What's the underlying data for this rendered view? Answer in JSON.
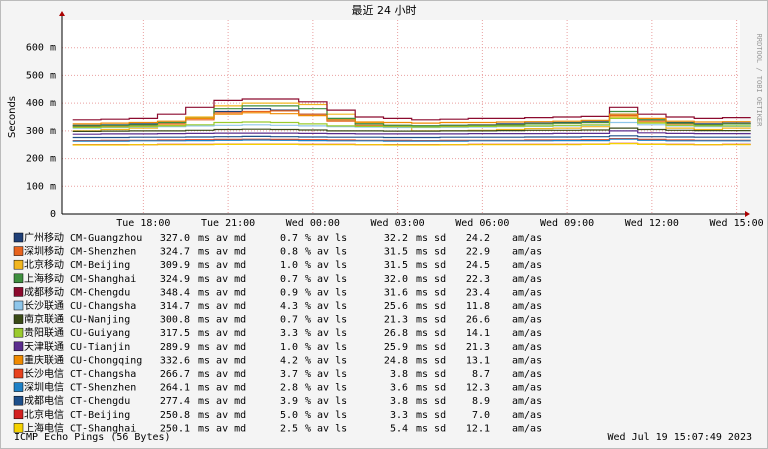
{
  "chart_data": {
    "type": "line",
    "title": "最近 24 小时",
    "y_label": "Seconds",
    "side_label": "RRDTOOL / TOBI OETIKER",
    "footer_left": "ICMP Echo Pings (56 Bytes)",
    "footer_right": "Wed Jul 19 15:07:49 2023",
    "legend_units": [
      "ms av md",
      "% av ls",
      "ms sd",
      "am/as"
    ],
    "grid": true,
    "x": [
      16,
      17,
      18,
      19,
      20,
      21,
      22,
      23,
      24,
      25,
      26,
      27,
      28,
      29,
      30,
      31,
      32,
      33,
      34,
      35,
      36,
      37,
      38,
      39
    ],
    "xlim": [
      15.12,
      39.12
    ],
    "xticks": [
      {
        "value": 18,
        "label": "Tue 18:00"
      },
      {
        "value": 21,
        "label": "Tue 21:00"
      },
      {
        "value": 24,
        "label": "Wed 00:00"
      },
      {
        "value": 27,
        "label": "Wed 03:00"
      },
      {
        "value": 30,
        "label": "Wed 06:00"
      },
      {
        "value": 33,
        "label": "Wed 09:00"
      },
      {
        "value": 36,
        "label": "Wed 12:00"
      },
      {
        "value": 39,
        "label": "Wed 15:00"
      }
    ],
    "ylim": [
      0,
      700
    ],
    "yticks": [
      0,
      {
        "value": 100,
        "label": "100 m"
      },
      {
        "value": 200,
        "label": "200 m"
      },
      {
        "value": 300,
        "label": "300 m"
      },
      {
        "value": 400,
        "label": "400 m"
      },
      {
        "value": 500,
        "label": "500 m"
      },
      {
        "value": 600,
        "label": "600 m"
      }
    ],
    "series": [
      {
        "name": "广州移动 CM-Guangzhou",
        "color": "#1f3f77",
        "stats": [
          "327.0",
          "0.7",
          "32.2",
          "24.2"
        ],
        "values": [
          320,
          322,
          325,
          330,
          345,
          370,
          380,
          375,
          360,
          340,
          325,
          320,
          318,
          320,
          322,
          325,
          328,
          330,
          335,
          360,
          340,
          330,
          325,
          328
        ]
      },
      {
        "name": "深圳移动 CM-Shenzhen",
        "color": "#e8641e",
        "stats": [
          "324.7",
          "0.8",
          "31.5",
          "22.9"
        ],
        "values": [
          315,
          318,
          320,
          325,
          340,
          365,
          370,
          372,
          360,
          335,
          320,
          316,
          315,
          318,
          320,
          322,
          325,
          328,
          330,
          355,
          335,
          325,
          322,
          325
        ]
      },
      {
        "name": "北京移动 CM-Beijing",
        "color": "#f2b61f",
        "stats": [
          "309.9",
          "1.0",
          "31.5",
          "24.5"
        ],
        "values": [
          300,
          305,
          310,
          320,
          350,
          390,
          400,
          400,
          395,
          360,
          330,
          320,
          300,
          300,
          302,
          305,
          308,
          310,
          315,
          350,
          330,
          310,
          305,
          310
        ]
      },
      {
        "name": "上海移动 CM-Shanghai",
        "color": "#3f8f3f",
        "stats": [
          "324.9",
          "0.7",
          "32.0",
          "22.3"
        ],
        "values": [
          318,
          320,
          322,
          330,
          345,
          380,
          390,
          390,
          380,
          345,
          325,
          320,
          318,
          320,
          320,
          322,
          325,
          328,
          330,
          370,
          340,
          328,
          322,
          325
        ]
      },
      {
        "name": "成都移动 CM-Chengdu",
        "color": "#8c0a2e",
        "stats": [
          "348.4",
          "0.9",
          "31.6",
          "23.4"
        ],
        "values": [
          340,
          342,
          345,
          360,
          385,
          410,
          415,
          415,
          405,
          375,
          350,
          345,
          340,
          342,
          345,
          345,
          348,
          350,
          352,
          385,
          360,
          350,
          345,
          348
        ]
      },
      {
        "name": "长沙联通 CU-Changsha",
        "color": "#8ec6ea",
        "stats": [
          "314.7",
          "4.3",
          "25.6",
          "11.8"
        ],
        "values": [
          310,
          312,
          314,
          315,
          318,
          320,
          322,
          320,
          318,
          315,
          314,
          312,
          312,
          313,
          314,
          315,
          316,
          318,
          320,
          330,
          322,
          318,
          315,
          316
        ]
      },
      {
        "name": "南京联通 CU-Nanjing",
        "color": "#3a4a16",
        "stats": [
          "300.8",
          "0.7",
          "21.3",
          "26.6"
        ],
        "values": [
          298,
          299,
          300,
          300,
          302,
          305,
          306,
          305,
          303,
          300,
          300,
          299,
          299,
          300,
          300,
          301,
          302,
          302,
          303,
          310,
          305,
          302,
          301,
          301
        ]
      },
      {
        "name": "贵阳联通 CU-Guiyang",
        "color": "#9acb2e",
        "stats": [
          "317.5",
          "3.3",
          "26.8",
          "14.1"
        ],
        "values": [
          312,
          314,
          316,
          318,
          322,
          330,
          332,
          330,
          325,
          318,
          316,
          315,
          314,
          315,
          316,
          317,
          318,
          320,
          322,
          345,
          328,
          320,
          318,
          318
        ]
      },
      {
        "name": "天津联通 CU-Tianjin",
        "color": "#5b2d8e",
        "stats": [
          "289.9",
          "1.0",
          "25.9",
          "21.3"
        ],
        "values": [
          288,
          289,
          289,
          290,
          291,
          292,
          292,
          292,
          291,
          290,
          289,
          289,
          289,
          289,
          290,
          290,
          290,
          291,
          291,
          300,
          293,
          291,
          290,
          290
        ]
      },
      {
        "name": "重庆联通 CU-Chongqing",
        "color": "#f08a00",
        "stats": [
          "332.6",
          "4.2",
          "24.8",
          "13.1"
        ],
        "values": [
          325,
          328,
          330,
          335,
          345,
          360,
          365,
          362,
          355,
          340,
          332,
          330,
          328,
          330,
          330,
          332,
          333,
          335,
          338,
          360,
          345,
          335,
          332,
          333
        ]
      },
      {
        "name": "长沙电信 CT-Changsha",
        "color": "#e8421e",
        "stats": [
          "266.7",
          "3.7",
          "3.8",
          "8.7"
        ],
        "values": [
          265,
          266,
          266,
          267,
          268,
          269,
          270,
          269,
          268,
          267,
          266,
          266,
          265,
          266,
          266,
          266,
          267,
          267,
          268,
          272,
          269,
          267,
          266,
          266
        ]
      },
      {
        "name": "深圳电信 CT-Shenzhen",
        "color": "#1d80c6",
        "stats": [
          "264.1",
          "2.8",
          "3.6",
          "12.3"
        ],
        "values": [
          263,
          263,
          264,
          264,
          265,
          266,
          267,
          266,
          265,
          264,
          264,
          263,
          263,
          263,
          264,
          264,
          264,
          265,
          265,
          270,
          266,
          264,
          264,
          264
        ]
      },
      {
        "name": "成都电信 CT-Chengdu",
        "color": "#1d4f8a",
        "stats": [
          "277.4",
          "3.9",
          "3.8",
          "8.9"
        ],
        "values": [
          276,
          276,
          277,
          277,
          278,
          279,
          280,
          279,
          278,
          277,
          277,
          276,
          276,
          277,
          277,
          277,
          278,
          278,
          279,
          282,
          279,
          278,
          277,
          277
        ]
      },
      {
        "name": "北京电信 CT-Beijing",
        "color": "#d42020",
        "stats": [
          "250.8",
          "5.0",
          "3.3",
          "7.0"
        ],
        "values": [
          250,
          250,
          250,
          251,
          251,
          252,
          252,
          252,
          251,
          251,
          250,
          250,
          250,
          250,
          251,
          251,
          251,
          251,
          252,
          255,
          252,
          251,
          250,
          251
        ]
      },
      {
        "name": "上海电信 CT-Shanghai",
        "color": "#f5d200",
        "stats": [
          "250.1",
          "2.5",
          "5.4",
          "12.1"
        ],
        "values": [
          249,
          249,
          250,
          250,
          250,
          251,
          251,
          251,
          250,
          250,
          250,
          249,
          249,
          250,
          250,
          250,
          250,
          250,
          251,
          254,
          251,
          250,
          250,
          250
        ]
      }
    ]
  }
}
